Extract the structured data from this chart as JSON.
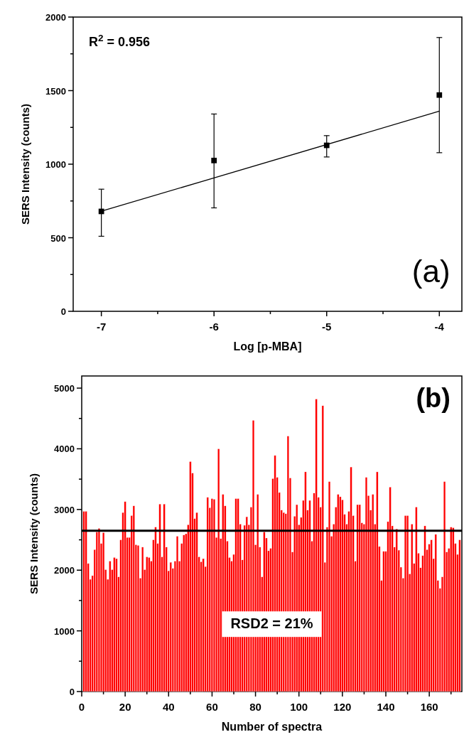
{
  "chart_data": [
    {
      "type": "scatter",
      "xlabel": "Log [p-MBA]",
      "ylabel": "SERS Intensity (counts)",
      "annotations": [
        "R$^{2}$ = 0.956",
        "(a)"
      ],
      "xlim": [
        -7.25,
        -3.8
      ],
      "ylim": [
        0,
        2000
      ],
      "xticks": [
        -7,
        {
          "value": -6.5,
          "label": null
        },
        -6,
        {
          "value": -5.5,
          "label": null
        },
        -5,
        {
          "value": -4.5,
          "label": null
        },
        -4
      ],
      "yticks": [
        0,
        {
          "value": 250,
          "label": null
        },
        500,
        {
          "value": 750,
          "label": null
        },
        1000,
        {
          "value": 1250,
          "label": null
        },
        1500,
        {
          "value": 1750,
          "label": null
        },
        2000
      ],
      "series": [
        {
          "marker": "square",
          "color": "#000000",
          "x": [
            -7,
            -6,
            -5,
            -4
          ],
          "values": [
            679,
            1025,
            1128,
            1470
          ],
          "errors": [
            [
              510,
              830
            ],
            [
              703,
              1341
            ],
            [
              1049,
              1194
            ],
            [
              1078,
              1861
            ]
          ]
        },
        {
          "type": "line",
          "color": "#000000",
          "x": [
            -7,
            -4
          ],
          "values": [
            680,
            1360
          ]
        }
      ]
    },
    {
      "type": "bar",
      "xlabel": "Number of spectra",
      "ylabel": "SERS Intensity (counts)",
      "annotations": [
        "(b)",
        "RSD2 = 21%"
      ],
      "xlim": [
        0,
        175
      ],
      "ylim": [
        0,
        5200
      ],
      "xticks": [
        0,
        {
          "value": 10,
          "label": null
        },
        20,
        {
          "value": 30,
          "label": null
        },
        40,
        {
          "value": 50,
          "label": null
        },
        60,
        {
          "value": 70,
          "label": null
        },
        80,
        {
          "value": 90,
          "label": null
        },
        100,
        {
          "value": 110,
          "label": null
        },
        120,
        {
          "value": 130,
          "label": null
        },
        140,
        {
          "value": 150,
          "label": null
        },
        160,
        {
          "value": 170,
          "label": null
        }
      ],
      "yticks": [
        0,
        {
          "value": 500,
          "label": null
        },
        1000,
        {
          "value": 1500,
          "label": null
        },
        2000,
        {
          "value": 2500,
          "label": null
        },
        3000,
        {
          "value": 3500,
          "label": null
        },
        4000,
        {
          "value": 4500,
          "label": null
        },
        5000
      ],
      "ref_lines": [
        {
          "axis": "y",
          "value": 2650,
          "color": "#000000"
        }
      ],
      "series": [
        {
          "color": "#ff0000",
          "x": [
            1,
            2,
            3,
            4,
            5,
            6,
            7,
            8,
            9,
            10,
            11,
            12,
            13,
            14,
            15,
            16,
            17,
            18,
            19,
            20,
            21,
            22,
            23,
            24,
            25,
            26,
            27,
            28,
            29,
            30,
            31,
            32,
            33,
            34,
            35,
            36,
            37,
            38,
            39,
            40,
            41,
            42,
            43,
            44,
            45,
            46,
            47,
            48,
            49,
            50,
            51,
            52,
            53,
            54,
            55,
            56,
            57,
            58,
            59,
            60,
            61,
            62,
            63,
            64,
            65,
            66,
            67,
            68,
            69,
            70,
            71,
            72,
            73,
            74,
            75,
            76,
            77,
            78,
            79,
            80,
            81,
            82,
            83,
            84,
            85,
            86,
            87,
            88,
            89,
            90,
            91,
            92,
            93,
            94,
            95,
            96,
            97,
            98,
            99,
            100,
            101,
            102,
            103,
            104,
            105,
            106,
            107,
            108,
            109,
            110,
            111,
            112,
            113,
            114,
            115,
            116,
            117,
            118,
            119,
            120,
            121,
            122,
            123,
            124,
            125,
            126,
            127,
            128,
            129,
            130,
            131,
            132,
            133,
            134,
            135,
            136,
            137,
            138,
            139,
            140,
            141,
            142,
            143,
            144,
            145,
            146,
            147,
            148,
            149,
            150,
            151,
            152,
            153,
            154,
            155,
            156,
            157,
            158,
            159,
            160,
            161,
            162,
            163,
            164,
            165,
            166,
            167,
            168,
            169,
            170,
            171,
            172,
            173,
            174
          ],
          "values": [
            2970,
            2970,
            2110,
            1850,
            1910,
            2340,
            2630,
            2690,
            2440,
            2620,
            2010,
            1850,
            2150,
            2010,
            2210,
            2190,
            1890,
            2500,
            2950,
            3130,
            2540,
            2540,
            2900,
            3060,
            2420,
            2410,
            1870,
            2380,
            2010,
            2220,
            2210,
            2150,
            2500,
            2710,
            2440,
            3090,
            2220,
            3090,
            2380,
            1990,
            2130,
            2030,
            2150,
            2560,
            2150,
            2440,
            2580,
            2600,
            2750,
            3790,
            3600,
            2850,
            2950,
            2220,
            2140,
            2190,
            2060,
            3200,
            3030,
            3180,
            3170,
            2540,
            4000,
            2520,
            3250,
            3060,
            2480,
            2210,
            2150,
            2260,
            3180,
            3180,
            2760,
            2170,
            2740,
            2880,
            2750,
            3040,
            4470,
            2420,
            3250,
            2380,
            1890,
            2630,
            2530,
            2320,
            2360,
            3510,
            3890,
            3530,
            3280,
            2990,
            2950,
            2930,
            4210,
            3520,
            2300,
            2890,
            3080,
            2750,
            2870,
            3150,
            3620,
            2990,
            3150,
            2480,
            3270,
            4820,
            3200,
            3040,
            4710,
            2130,
            2710,
            3460,
            2560,
            2760,
            3040,
            3250,
            3210,
            3160,
            2920,
            2760,
            2970,
            3700,
            2900,
            2150,
            3080,
            3080,
            2780,
            2760,
            3530,
            3230,
            2990,
            3250,
            2760,
            3620,
            2390,
            1830,
            2310,
            2310,
            2800,
            3370,
            2730,
            2380,
            2680,
            2330,
            2050,
            1870,
            2900,
            2900,
            1940,
            2760,
            2110,
            3040,
            2280,
            2040,
            2240,
            2730,
            2340,
            2430,
            2500,
            2190,
            2590,
            1830,
            1700,
            1890,
            3460,
            2300,
            2360,
            2710,
            2700,
            2440,
            2260,
            2500
          ]
        }
      ]
    }
  ]
}
